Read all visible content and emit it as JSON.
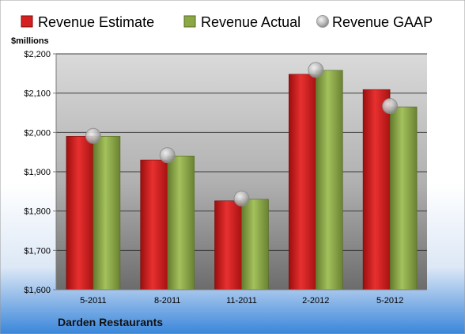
{
  "chart_data": {
    "type": "bar",
    "unit_label": "$millions",
    "categories": [
      "5-2011",
      "8-2011",
      "11-2011",
      "2-2012",
      "5-2012"
    ],
    "series": [
      {
        "name": "Revenue Estimate",
        "kind": "bar",
        "color": "#d42020",
        "values": [
          1990,
          1930,
          1826,
          2148,
          2109
        ]
      },
      {
        "name": "Revenue Actual",
        "kind": "bar",
        "color": "#8ca845",
        "values": [
          1990,
          1940,
          1830,
          2158,
          2065
        ]
      },
      {
        "name": "Revenue GAAP",
        "kind": "marker",
        "color": "#b8b8b8",
        "values": [
          1991,
          1942,
          1832,
          2159,
          2067
        ]
      }
    ],
    "ylim": [
      1600,
      2200
    ],
    "yticks": [
      1600,
      1700,
      1800,
      1900,
      2000,
      2100,
      2200
    ],
    "ytick_labels": [
      "$1,600",
      "$1,700",
      "$1,800",
      "$1,900",
      "$2,000",
      "$2,100",
      "$2,200"
    ],
    "grid": true,
    "legend_position": "top"
  },
  "footer": {
    "company": "Darden Restaurants"
  }
}
